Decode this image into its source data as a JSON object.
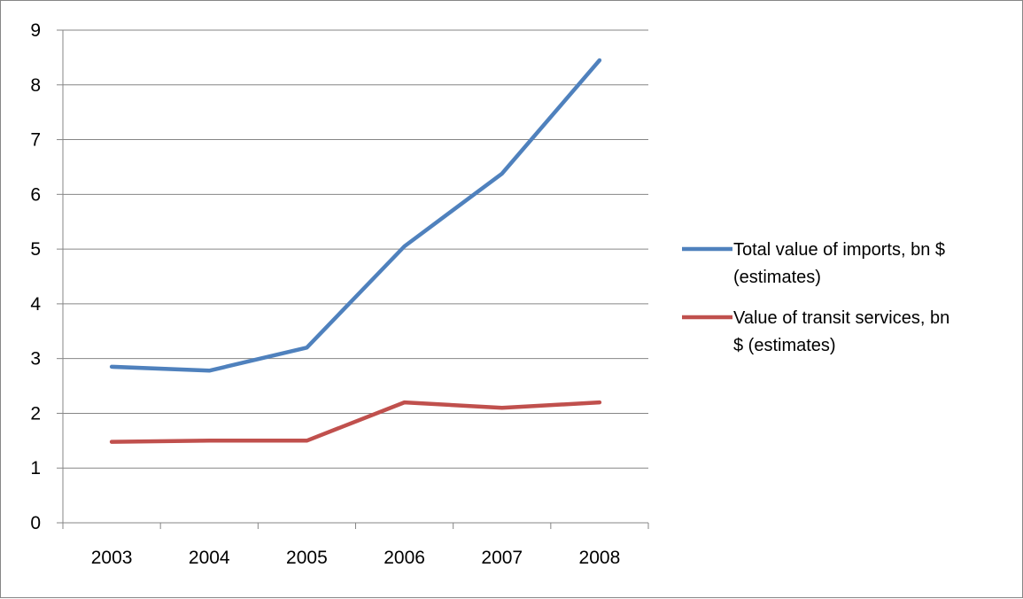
{
  "chart_data": {
    "type": "line",
    "title": "",
    "xlabel": "",
    "ylabel": "",
    "categories": [
      "2003",
      "2004",
      "2005",
      "2006",
      "2007",
      "2008"
    ],
    "ylim": [
      0,
      9
    ],
    "yticks": [
      "0",
      "1",
      "2",
      "3",
      "4",
      "5",
      "6",
      "7",
      "8",
      "9"
    ],
    "grid": true,
    "legend_position": "right",
    "series": [
      {
        "name": "Total value of imports, bn $ (estimates)",
        "legend_lines": [
          "Total value of imports, bn $",
          "(estimates)"
        ],
        "color": "#4F81BD",
        "values": [
          2.85,
          2.78,
          3.2,
          5.05,
          6.38,
          8.45
        ]
      },
      {
        "name": "Value of transit services, bn $ (estimates)",
        "legend_lines": [
          "Value of transit services, bn",
          "$ (estimates)"
        ],
        "color": "#C0504D",
        "values": [
          1.48,
          1.5,
          1.5,
          2.2,
          2.1,
          2.2
        ]
      }
    ]
  }
}
